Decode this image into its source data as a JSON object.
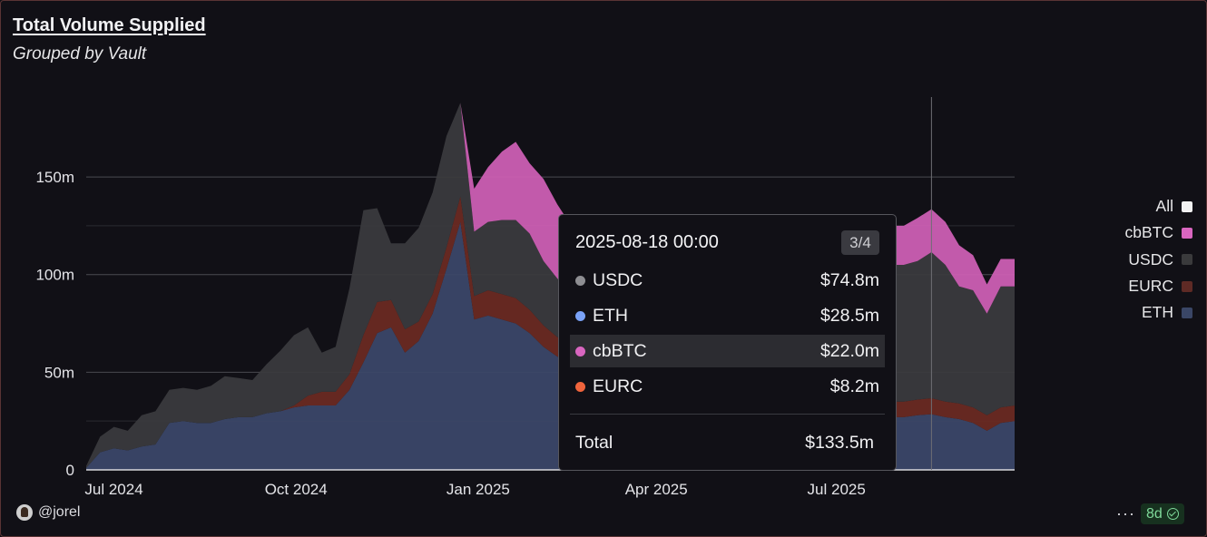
{
  "header": {
    "title": "Total Volume Supplied",
    "subtitle": "Grouped by Vault"
  },
  "legend": [
    {
      "label": "All",
      "color": "#f2f2f2"
    },
    {
      "label": "cbBTC",
      "color": "#d966c0"
    },
    {
      "label": "USDC",
      "color": "#3a3a3c"
    },
    {
      "label": "EURC",
      "color": "#5e2a25"
    },
    {
      "label": "ETH",
      "color": "#3a4666"
    }
  ],
  "tooltip": {
    "title": "2025-08-18 00:00",
    "page": "3/4",
    "rows": [
      {
        "name": "USDC",
        "value": "$74.8m",
        "color": "#8e8e92"
      },
      {
        "name": "ETH",
        "value": "$28.5m",
        "color": "#7aa2f7"
      },
      {
        "name": "cbBTC",
        "value": "$22.0m",
        "color": "#d966c0"
      },
      {
        "name": "EURC",
        "value": "$8.2m",
        "color": "#f0643c"
      }
    ],
    "total_label": "Total",
    "total_value": "$133.5m"
  },
  "footer": {
    "user": "@jorel",
    "more_label": "···",
    "age_label": "8d"
  },
  "chart_data": {
    "type": "area",
    "stacked": true,
    "ylim": [
      0,
      190
    ],
    "y_ticks": [
      0,
      50,
      100,
      150
    ],
    "y_tick_labels": [
      "0",
      "50m",
      "100m",
      "150m"
    ],
    "x_tick_labels": [
      "Jul 2024",
      "Oct 2024",
      "Jan 2025",
      "Apr 2025",
      "Jul 2025"
    ],
    "x_ticks": [
      "2024-07-01",
      "2024-10-01",
      "2025-01-01",
      "2025-04-01",
      "2025-07-01"
    ],
    "x": [
      "2024-06-17",
      "2024-06-24",
      "2024-07-01",
      "2024-07-08",
      "2024-07-15",
      "2024-07-22",
      "2024-07-29",
      "2024-08-05",
      "2024-08-12",
      "2024-08-19",
      "2024-08-26",
      "2024-09-02",
      "2024-09-09",
      "2024-09-16",
      "2024-09-23",
      "2024-09-30",
      "2024-10-07",
      "2024-10-14",
      "2024-10-21",
      "2024-10-28",
      "2024-11-04",
      "2024-11-11",
      "2024-11-18",
      "2024-11-25",
      "2024-12-02",
      "2024-12-09",
      "2024-12-16",
      "2024-12-23",
      "2024-12-30",
      "2025-01-06",
      "2025-01-13",
      "2025-01-20",
      "2025-01-27",
      "2025-02-03",
      "2025-02-10",
      "2025-02-17",
      "2025-02-24",
      "2025-03-03",
      "2025-03-10",
      "2025-03-17",
      "2025-03-24",
      "2025-03-31",
      "2025-04-07",
      "2025-04-14",
      "2025-04-21",
      "2025-04-28",
      "2025-05-05",
      "2025-05-12",
      "2025-05-19",
      "2025-05-26",
      "2025-06-02",
      "2025-06-09",
      "2025-06-16",
      "2025-06-23",
      "2025-06-30",
      "2025-07-07",
      "2025-07-14",
      "2025-07-21",
      "2025-07-28",
      "2025-08-04",
      "2025-08-11",
      "2025-08-18",
      "2025-08-25",
      "2025-09-01",
      "2025-09-08",
      "2025-09-15",
      "2025-09-22",
      "2025-09-29"
    ],
    "series": [
      {
        "name": "ETH",
        "color": "#3b4768",
        "values": [
          1,
          9,
          11,
          10,
          12,
          13,
          24,
          25,
          24,
          24,
          26,
          27,
          27,
          29,
          30,
          32,
          33,
          33,
          33,
          41,
          55,
          70,
          73,
          60,
          66,
          80,
          103,
          127,
          77,
          79,
          77,
          75,
          70,
          63,
          58,
          56,
          56,
          56,
          56,
          56,
          56,
          56,
          56,
          56,
          56,
          56,
          52,
          48,
          45,
          42,
          40,
          38,
          34,
          32,
          30,
          29,
          28,
          27,
          27,
          27,
          28,
          28.5,
          27,
          26,
          24,
          20,
          24,
          25
        ]
      },
      {
        "name": "EURC",
        "color": "#6a2a22",
        "values": [
          0,
          0,
          0,
          0,
          0,
          0,
          0,
          0,
          0,
          0,
          0,
          0,
          0,
          0,
          0,
          1,
          5,
          7,
          7,
          8,
          14,
          16,
          14,
          12,
          10,
          10,
          11,
          13,
          12,
          13,
          13,
          13,
          12,
          11,
          10,
          10,
          10,
          10,
          10,
          10,
          10,
          10,
          10,
          10,
          10,
          10,
          9,
          9,
          9,
          9,
          9,
          9,
          9,
          9,
          8,
          8,
          8,
          8,
          8,
          8,
          8,
          8.2,
          8,
          8,
          8,
          8,
          8,
          8
        ]
      },
      {
        "name": "USDC",
        "color": "#3a3a3d",
        "values": [
          1,
          8,
          11,
          10,
          16,
          17,
          17,
          17,
          17,
          19,
          22,
          20,
          19,
          25,
          31,
          36,
          35,
          20,
          23,
          44,
          64,
          48,
          29,
          44,
          48,
          52,
          57,
          48,
          33,
          35,
          38,
          40,
          39,
          33,
          30,
          25,
          22,
          19,
          16,
          14,
          12,
          10,
          5,
          2,
          1,
          1,
          22,
          36,
          46,
          54,
          58,
          62,
          64,
          66,
          68,
          69,
          70,
          70,
          70,
          70,
          71,
          74.8,
          70,
          60,
          60,
          52,
          62,
          61
        ]
      },
      {
        "name": "cbBTC",
        "color": "#cc5fb3",
        "values": [
          0,
          0,
          0,
          0,
          0,
          0,
          0,
          0,
          0,
          0,
          0,
          0,
          0,
          0,
          0,
          0,
          0,
          0,
          0,
          0,
          0,
          0,
          0,
          0,
          0,
          0,
          0,
          0,
          22,
          28,
          35,
          40,
          36,
          42,
          38,
          34,
          28,
          25,
          24,
          22,
          20,
          20,
          20,
          20,
          20,
          19,
          19,
          19,
          19,
          19,
          19,
          19,
          19,
          19,
          19,
          19,
          19,
          20,
          20,
          20,
          22,
          22,
          22,
          21,
          18,
          15,
          14,
          14
        ]
      }
    ]
  }
}
